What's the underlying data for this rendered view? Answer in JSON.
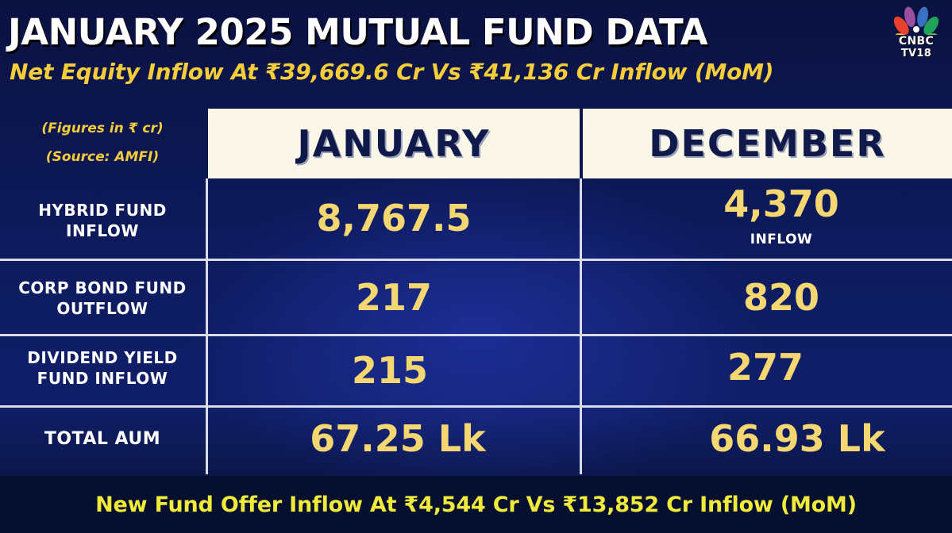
{
  "header": {
    "title": "JANUARY 2025 MUTUAL FUND DATA",
    "subtitle": "Net Equity Inflow At ₹39,669.6 Cr Vs ₹41,136 Cr Inflow (MoM)"
  },
  "logo": {
    "line1": "CNBC",
    "line2": "TV18"
  },
  "table": {
    "note1": "(Figures in ₹ cr)",
    "note2": "(Source: AMFI)",
    "columns": [
      "JANUARY",
      "DECEMBER"
    ],
    "rows": [
      {
        "label1": "HYBRID FUND",
        "label2": "INFLOW",
        "jan": "8,767.5",
        "dec": "4,370",
        "dec_note": "INFLOW"
      },
      {
        "label1": "CORP BOND FUND",
        "label2": "OUTFLOW",
        "jan": "217",
        "dec": "820"
      },
      {
        "label1": "DIVIDEND YIELD",
        "label2": "FUND INFLOW",
        "jan": "215",
        "dec": "277"
      },
      {
        "label1": "TOTAL AUM",
        "jan": "67.25 Lk",
        "dec": "66.93 Lk"
      }
    ]
  },
  "footer": {
    "text": "New Fund Offer Inflow At ₹4,544 Cr Vs ₹13,852 Cr Inflow (MoM)"
  }
}
